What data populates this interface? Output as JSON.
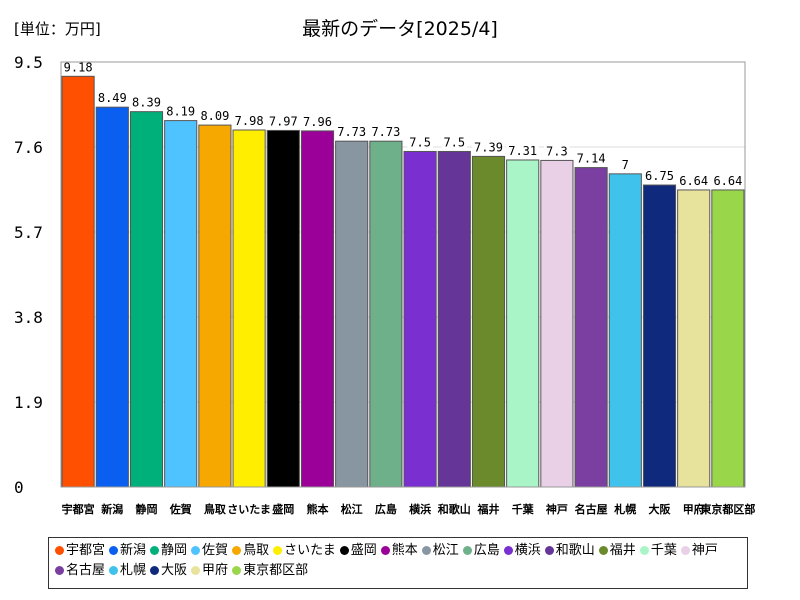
{
  "unit_label": "[単位：万円]",
  "chart_data": {
    "type": "bar",
    "title": "最新のデータ[2025/4]",
    "xlabel": "",
    "ylabel": "",
    "ylim": [
      0,
      9.5
    ],
    "yticks": [
      "0",
      "1.9",
      "3.8",
      "5.7",
      "7.6",
      "9.5"
    ],
    "categories": [
      "宇都宮",
      "新潟",
      "静岡",
      "佐賀",
      "鳥取",
      "さいたま",
      "盛岡",
      "熊本",
      "松江",
      "広島",
      "横浜",
      "和歌山",
      "福井",
      "千葉",
      "神戸",
      "名古屋",
      "札幌",
      "大阪",
      "甲府",
      "東京都区部"
    ],
    "values": [
      9.18,
      8.49,
      8.39,
      8.19,
      8.09,
      7.98,
      7.97,
      7.96,
      7.73,
      7.73,
      7.5,
      7.5,
      7.39,
      7.31,
      7.3,
      7.14,
      7,
      6.75,
      6.64,
      6.64
    ],
    "value_labels": [
      "9.18",
      "8.49",
      "8.39",
      "8.19",
      "8.09",
      "7.98",
      "7.97",
      "7.96",
      "7.73",
      "7.73",
      "7.5",
      "7.5",
      "7.39",
      "7.31",
      "7.3",
      "7.14",
      "7",
      "6.75",
      "6.64",
      "6.64"
    ],
    "colors": [
      "#ff4f00",
      "#0a5ff0",
      "#00b07a",
      "#4fc3ff",
      "#f7a800",
      "#ffee00",
      "#000000",
      "#9b0099",
      "#8896a2",
      "#6db08a",
      "#7a2fd0",
      "#653597",
      "#6b8a2c",
      "#a9f5c7",
      "#ead0e6",
      "#7a3fa0",
      "#3fc3ec",
      "#0f2a7c",
      "#e7e29c",
      "#9ad64a"
    ]
  }
}
